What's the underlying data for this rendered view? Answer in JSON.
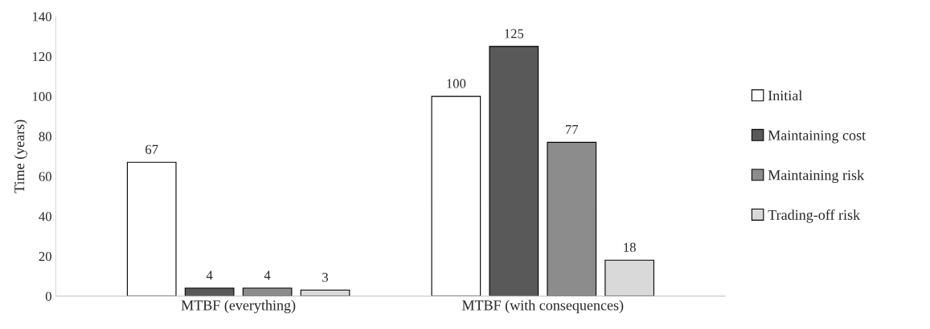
{
  "chart_data": {
    "type": "bar",
    "ylabel": "Time (years)",
    "categories": [
      "MTBF (everything)",
      "MTBF (with consequences)"
    ],
    "series": [
      {
        "name": "Initial",
        "color": "#ffffff",
        "values": [
          67,
          100
        ]
      },
      {
        "name": "Maintaining cost",
        "color": "#595959",
        "values": [
          4,
          125
        ]
      },
      {
        "name": "Maintaining risk",
        "color": "#8c8c8c",
        "values": [
          4,
          77
        ]
      },
      {
        "name": "Trading-off risk",
        "color": "#d9d9d9",
        "values": [
          3,
          18
        ]
      }
    ],
    "ylim": [
      0,
      140
    ],
    "yticks": [
      0,
      20,
      40,
      60,
      80,
      100,
      120,
      140
    ],
    "data_labels": true,
    "legend": "right",
    "grid": false
  }
}
